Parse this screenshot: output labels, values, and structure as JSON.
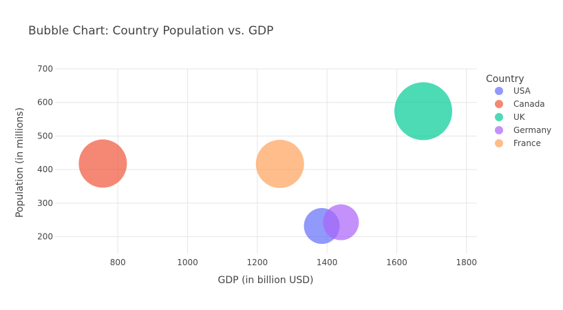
{
  "chart_data": {
    "type": "scatter",
    "title": "Bubble Chart: Country Population vs. GDP",
    "xlabel": "GDP (in billion USD)",
    "ylabel": "Population (in millions)",
    "xlim": [
      620,
      1830
    ],
    "ylim": [
      150,
      700
    ],
    "xticks": [
      800,
      1000,
      1200,
      1400,
      1600,
      1800
    ],
    "yticks": [
      200,
      300,
      400,
      500,
      600,
      700
    ],
    "grid": true,
    "legend": {
      "title": "Country",
      "position": "right"
    },
    "series": [
      {
        "name": "USA",
        "color": "#636efa",
        "points": [
          {
            "x": 1385,
            "y": 232,
            "size": 26
          }
        ]
      },
      {
        "name": "Canada",
        "color": "#ef553b",
        "points": [
          {
            "x": 757,
            "y": 418,
            "size": 35
          }
        ]
      },
      {
        "name": "UK",
        "color": "#00cc96",
        "points": [
          {
            "x": 1676,
            "y": 574,
            "size": 42
          }
        ]
      },
      {
        "name": "Germany",
        "color": "#ab63fa",
        "points": [
          {
            "x": 1440,
            "y": 243,
            "size": 26
          }
        ]
      },
      {
        "name": "France",
        "color": "#ffa15a",
        "points": [
          {
            "x": 1265,
            "y": 417,
            "size": 35
          }
        ]
      }
    ]
  }
}
